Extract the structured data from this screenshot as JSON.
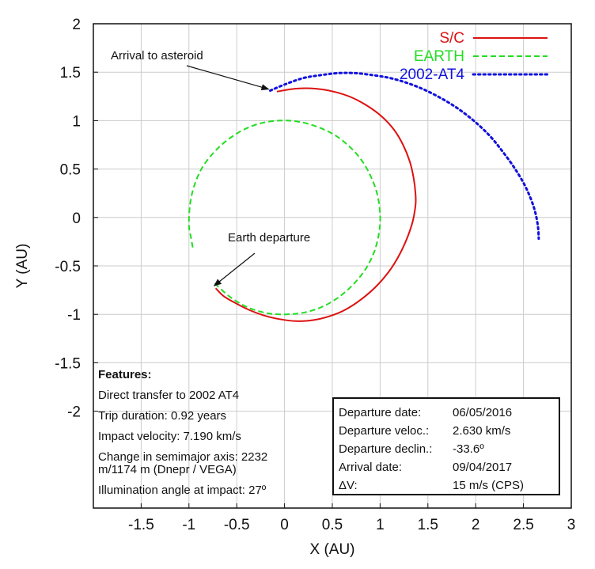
{
  "chart_data": {
    "type": "line",
    "xlabel": "X (AU)",
    "ylabel": "Y (AU)",
    "xlim": [
      -2,
      3
    ],
    "ylim": [
      -3,
      2
    ],
    "xticks": [
      -1.5,
      -1,
      -0.5,
      0,
      0.5,
      1,
      1.5,
      2,
      2.5,
      3
    ],
    "yticks": [
      -2,
      -1.5,
      -1,
      -0.5,
      0,
      0.5,
      1,
      1.5,
      2
    ],
    "grid": true,
    "legend_position": "top-right",
    "series": [
      {
        "name": "S/C",
        "color": "#dd1111",
        "style": "solid",
        "x": [
          -0.72,
          -0.64,
          -0.52,
          -0.38,
          -0.22,
          -0.05,
          0.12,
          0.3,
          0.47,
          0.64,
          0.81,
          0.97,
          1.12,
          1.24,
          1.33,
          1.37,
          1.37,
          1.35,
          1.31,
          1.24,
          1.15,
          1.02,
          0.87,
          0.7,
          0.51,
          0.32,
          0.12,
          -0.08
        ],
        "y": [
          -0.73,
          -0.81,
          -0.88,
          -0.95,
          -1.01,
          -1.05,
          -1.07,
          -1.06,
          -1.02,
          -0.95,
          -0.84,
          -0.7,
          -0.52,
          -0.31,
          -0.08,
          0.12,
          0.25,
          0.41,
          0.58,
          0.75,
          0.9,
          1.04,
          1.15,
          1.24,
          1.3,
          1.33,
          1.33,
          1.3
        ]
      },
      {
        "name": "EARTH",
        "color": "#22dd22",
        "style": "dashed",
        "x": [
          -0.73,
          -0.57,
          -0.38,
          -0.17,
          0.02,
          0.21,
          0.4,
          0.57,
          0.72,
          0.85,
          0.94,
          0.99,
          1.0,
          0.97,
          0.9,
          0.8,
          0.67,
          0.51,
          0.33,
          0.14,
          -0.06,
          -0.26,
          -0.44,
          -0.61,
          -0.75,
          -0.87,
          -0.95,
          -0.99,
          -1.0,
          -0.98,
          -0.96
        ],
        "y": [
          -0.68,
          -0.82,
          -0.93,
          -0.99,
          -1.0,
          -0.98,
          -0.92,
          -0.82,
          -0.69,
          -0.53,
          -0.35,
          -0.15,
          0.03,
          0.24,
          0.43,
          0.6,
          0.74,
          0.86,
          0.94,
          0.99,
          1.0,
          0.97,
          0.9,
          0.79,
          0.66,
          0.5,
          0.31,
          0.12,
          -0.08,
          -0.2,
          -0.31
        ]
      },
      {
        "name": "2002-AT4",
        "color": "#1111dd",
        "style": "dotted",
        "x": [
          -0.15,
          0.02,
          0.2,
          0.38,
          0.56,
          0.74,
          0.92,
          1.1,
          1.28,
          1.46,
          1.64,
          1.82,
          1.99,
          2.15,
          2.29,
          2.42,
          2.53,
          2.61,
          2.65,
          2.66
        ],
        "y": [
          1.31,
          1.38,
          1.44,
          1.47,
          1.49,
          1.49,
          1.47,
          1.44,
          1.39,
          1.32,
          1.23,
          1.12,
          0.99,
          0.84,
          0.67,
          0.49,
          0.3,
          0.1,
          -0.08,
          -0.22
        ]
      }
    ],
    "annotations": [
      {
        "text": "Arrival to asteroid",
        "x": -0.15,
        "y": 1.3
      },
      {
        "text": "Earth departure",
        "x": -0.72,
        "y": -0.73
      }
    ]
  },
  "features": {
    "title": "Features:",
    "lines": [
      "Direct transfer to 2002 AT4",
      "Trip duration: 0.92 years",
      "Impact velocity: 7.190 km/s",
      "Change in semimajor axis: 2232 m/1174 m (Dnepr / VEGA)",
      "Illumination angle at impact: 27º"
    ]
  },
  "mission_box": {
    "rows": [
      {
        "key": "Departure date:",
        "value": "06/05/2016"
      },
      {
        "key": "Departure veloc.:",
        "value": "2.630 km/s"
      },
      {
        "key": "Departure declin.:",
        "value": "-33.6º"
      },
      {
        "key": "Arrival date:",
        "value": "09/04/2017"
      },
      {
        "key": "ΔV:",
        "value": "15 m/s (CPS)"
      }
    ]
  }
}
